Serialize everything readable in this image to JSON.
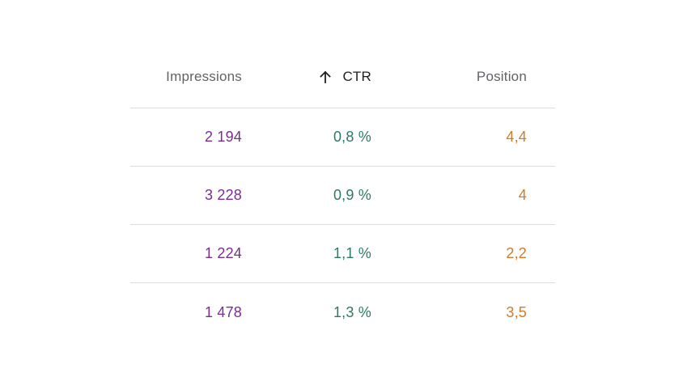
{
  "columns": {
    "impressions": "Impressions",
    "ctr": "CTR",
    "position": "Position"
  },
  "sort": {
    "column": "ctr",
    "direction": "ascending",
    "icon": "arrow-up-icon"
  },
  "colors": {
    "impressions": "#7b2c93",
    "ctr": "#2a7a64",
    "position": "#d17a2a",
    "divider": "#dadce0"
  },
  "rows": [
    {
      "impressions": "2 194",
      "ctr": "0,8 %",
      "position": "4,4"
    },
    {
      "impressions": "3 228",
      "ctr": "0,9 %",
      "position": "4"
    },
    {
      "impressions": "1 224",
      "ctr": "1,1 %",
      "position": "2,2"
    },
    {
      "impressions": "1 478",
      "ctr": "1,3 %",
      "position": "3,5"
    }
  ]
}
